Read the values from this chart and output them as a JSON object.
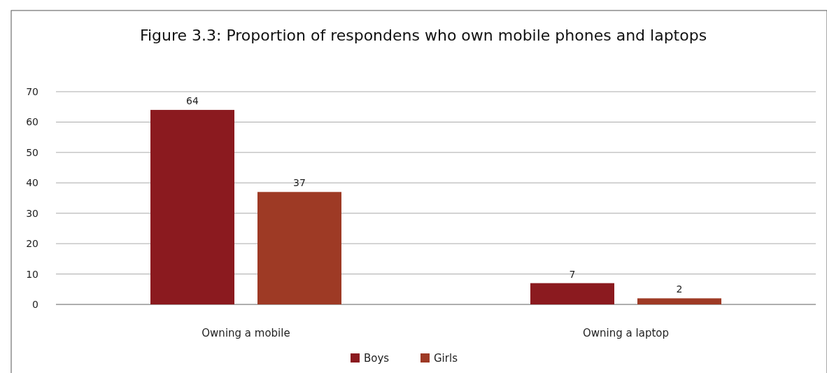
{
  "chart_data": {
    "type": "bar",
    "title": "Figure 3.3: Proportion of respondens who own mobile phones and laptops",
    "categories": [
      "Owning a mobile",
      "Owning a laptop"
    ],
    "series": [
      {
        "name": "Boys",
        "color": "#8b1a1f",
        "values": [
          64,
          7
        ]
      },
      {
        "name": "Girls",
        "color": "#9e3a25",
        "values": [
          37,
          2
        ]
      }
    ],
    "ylim": [
      0,
      70
    ],
    "yticks": [
      0,
      10,
      20,
      30,
      40,
      50,
      60,
      70
    ],
    "grid": "y",
    "legend": "bottom",
    "data_labels": true
  }
}
